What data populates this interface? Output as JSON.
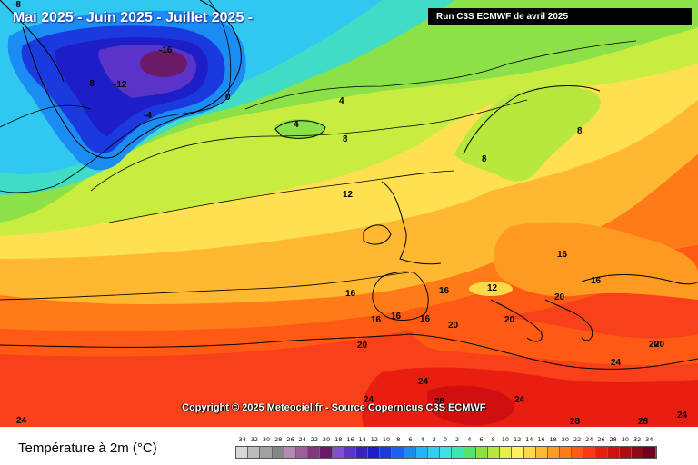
{
  "header": {
    "title": "Mai 2025 - Juin 2025 - Juillet 2025 -",
    "run_info": "Run C3S ECMWF de avril 2025"
  },
  "copyright": "Copyright © 2025 Meteociel.fr - Source Copernicus C3S ECMWF",
  "legend": {
    "variable": "Température à 2m (°C)",
    "scale_values": [
      "-34",
      "-32",
      "-30",
      "-28",
      "-26",
      "-24",
      "-22",
      "-20",
      "-18",
      "-16",
      "-14",
      "-12",
      "-10",
      "-8",
      "-6",
      "-4",
      "-2",
      "0",
      "2",
      "4",
      "6",
      "8",
      "10",
      "12",
      "14",
      "16",
      "18",
      "20",
      "22",
      "24",
      "26",
      "28",
      "30",
      "32",
      "34"
    ],
    "scale_colors": [
      "#d8d8d8",
      "#bcbcbc",
      "#a0a0a0",
      "#868686",
      "#b28ab2",
      "#9a609a",
      "#82387e",
      "#6a1a66",
      "#8050d0",
      "#5a34c8",
      "#3a22c0",
      "#1e1ec8",
      "#1a3ae0",
      "#1a62ef",
      "#1b8cf3",
      "#22b4f5",
      "#30d0f0",
      "#40e0e0",
      "#38e8b0",
      "#52e468",
      "#8ae040",
      "#b8e83c",
      "#e6f040",
      "#fff060",
      "#ffd848",
      "#ffb830",
      "#ff9a20",
      "#ff7a18",
      "#ff5a14",
      "#f83a10",
      "#e81e10",
      "#d01010",
      "#b00a14",
      "#900818",
      "#700020"
    ]
  },
  "map": {
    "isotherm_labels": [
      "-16",
      "-12",
      "-8",
      "-8",
      "-4",
      "0",
      "4",
      "4",
      "8",
      "8",
      "8",
      "12",
      "16",
      "16",
      "16",
      "16",
      "16",
      "16",
      "12",
      "16",
      "20",
      "20",
      "20",
      "20",
      "20",
      "20",
      "24",
      "24",
      "24",
      "24",
      "28",
      "28",
      "28",
      "24",
      "24"
    ]
  }
}
